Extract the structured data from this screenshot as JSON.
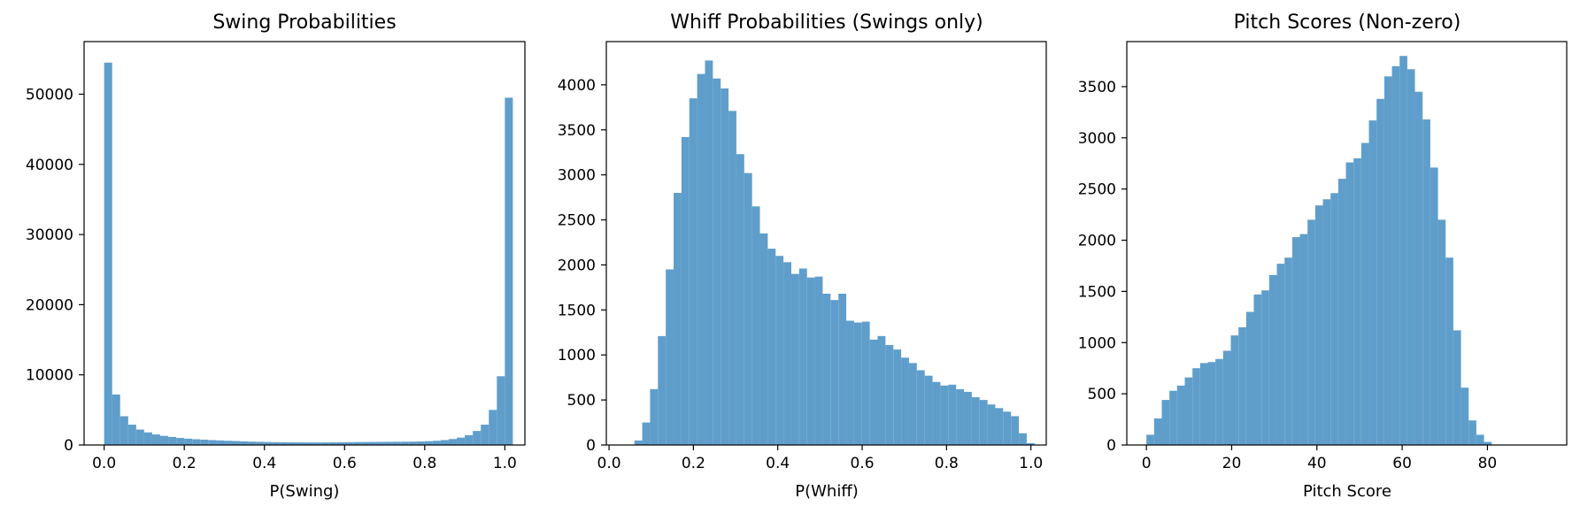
{
  "chart_data": [
    {
      "type": "bar",
      "title": "Swing Probabilities",
      "xlabel": "P(Swing)",
      "ylabel": "",
      "xlim": [
        -0.05,
        1.05
      ],
      "ylim": [
        0,
        57500
      ],
      "xticks": [
        0,
        0.2,
        0.4,
        0.6,
        0.8,
        1.0
      ],
      "xtick_labels": [
        "0.0",
        "0.2",
        "0.4",
        "0.6",
        "0.8",
        "1.0"
      ],
      "yticks": [
        0,
        10000,
        20000,
        30000,
        40000,
        50000
      ],
      "ytick_labels": [
        "0",
        "10000",
        "20000",
        "30000",
        "40000",
        "50000"
      ],
      "bins": {
        "start": 0.0,
        "width": 0.02
      },
      "values": [
        54500,
        7200,
        4100,
        2900,
        2200,
        1800,
        1500,
        1300,
        1150,
        1000,
        900,
        820,
        760,
        700,
        650,
        600,
        560,
        520,
        480,
        450,
        420,
        400,
        390,
        380,
        370,
        360,
        360,
        370,
        380,
        390,
        400,
        410,
        420,
        430,
        440,
        450,
        460,
        470,
        480,
        500,
        540,
        600,
        700,
        850,
        1050,
        1400,
        2000,
        2900,
        5000,
        9800,
        49500
      ],
      "color": "#5f9ecb"
    },
    {
      "type": "bar",
      "title": "Whiff Probabilities (Swings only)",
      "xlabel": "P(Whiff)",
      "ylabel": "",
      "xlim": [
        -0.0064,
        1.0364
      ],
      "ylim": [
        0,
        4480
      ],
      "xticks": [
        0,
        0.2,
        0.4,
        0.6,
        0.8,
        1.0
      ],
      "xtick_labels": [
        "0.0",
        "0.2",
        "0.4",
        "0.6",
        "0.8",
        "1.0"
      ],
      "yticks": [
        0,
        500,
        1000,
        1500,
        2000,
        2500,
        3000,
        3500,
        4000
      ],
      "ytick_labels": [
        "0",
        "500",
        "1000",
        "1500",
        "2000",
        "2500",
        "3000",
        "3500",
        "4000"
      ],
      "bins": {
        "start": 0.0601,
        "width": 0.0186
      },
      "values": [
        50,
        250,
        620,
        1210,
        1950,
        2800,
        3420,
        3850,
        4120,
        4270,
        4070,
        3960,
        3710,
        3230,
        3020,
        2650,
        2350,
        2180,
        2100,
        2030,
        1900,
        1960,
        1860,
        1870,
        1680,
        1610,
        1680,
        1380,
        1360,
        1370,
        1170,
        1210,
        1110,
        1060,
        970,
        910,
        830,
        770,
        700,
        660,
        670,
        620,
        590,
        530,
        500,
        450,
        410,
        370,
        320,
        130,
        20
      ],
      "color": "#5f9ecb"
    },
    {
      "type": "bar",
      "title": "Pitch Scores (Non-zero)",
      "xlabel": "Pitch Score",
      "ylabel": "",
      "xlim": [
        -4.6,
        98.6
      ],
      "ylim": [
        0,
        3940
      ],
      "xticks": [
        0,
        20,
        40,
        60,
        80
      ],
      "xtick_labels": [
        "0",
        "20",
        "40",
        "60",
        "80"
      ],
      "yticks": [
        0,
        500,
        1000,
        1500,
        2000,
        2500,
        3000,
        3500
      ],
      "ytick_labels": [
        "0",
        "500",
        "1000",
        "1500",
        "2000",
        "2500",
        "3000",
        "3500"
      ],
      "bins": {
        "start": 0.0,
        "width": 1.8
      },
      "values": [
        100,
        260,
        440,
        530,
        580,
        660,
        750,
        800,
        810,
        840,
        920,
        1070,
        1150,
        1300,
        1470,
        1510,
        1660,
        1770,
        1830,
        2030,
        2060,
        2200,
        2340,
        2400,
        2460,
        2600,
        2760,
        2800,
        2950,
        3170,
        3380,
        3600,
        3700,
        3800,
        3670,
        3450,
        3180,
        2710,
        2200,
        1830,
        1120,
        560,
        240,
        100,
        30
      ],
      "color": "#5f9ecb"
    }
  ]
}
